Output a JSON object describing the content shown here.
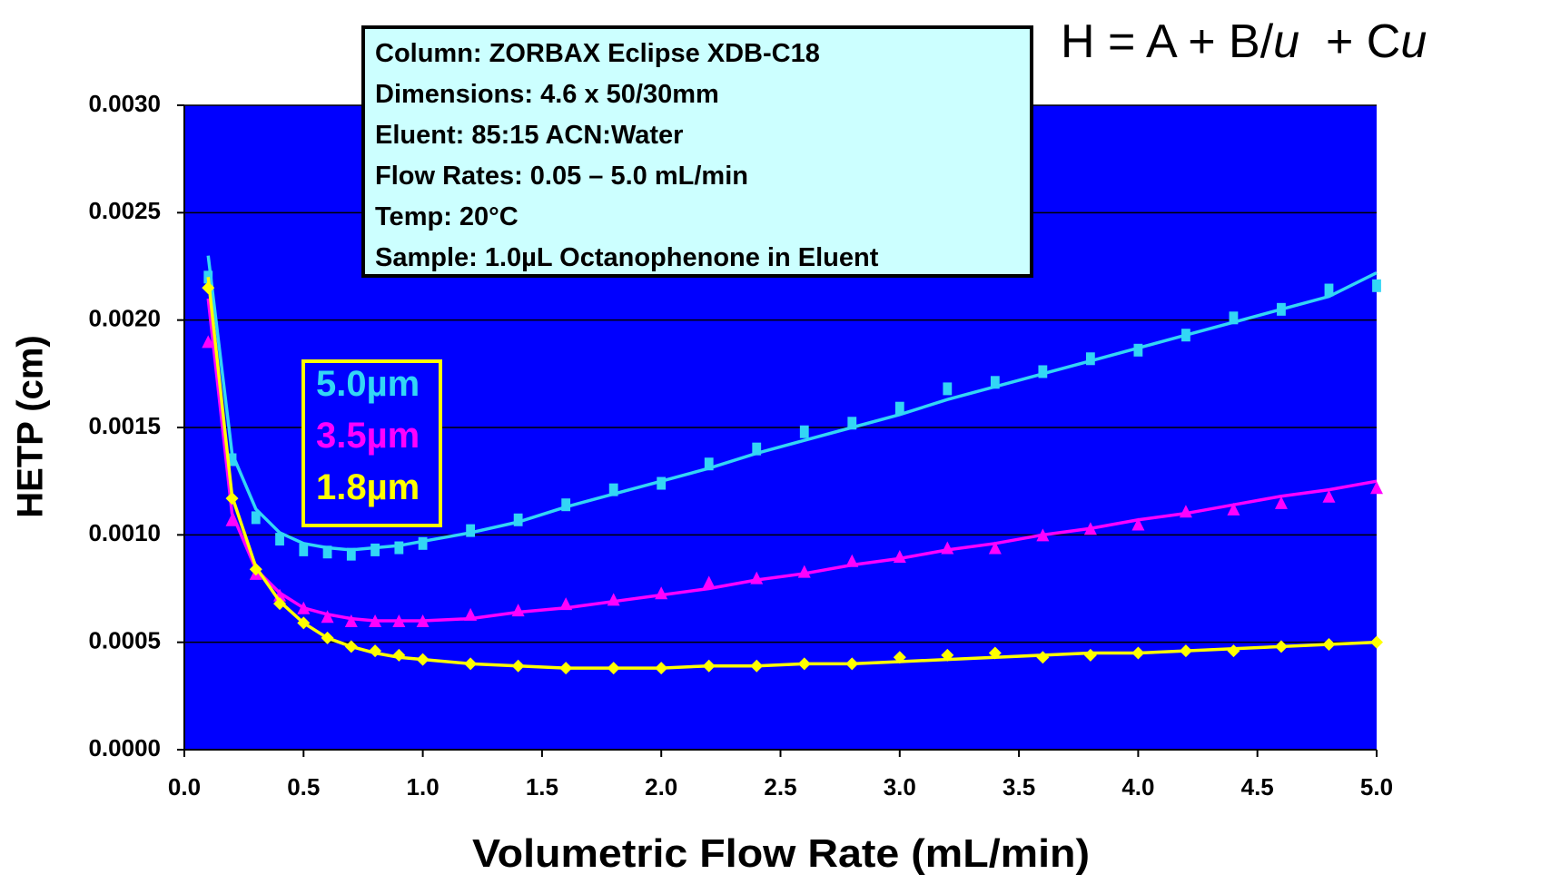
{
  "chart_data": {
    "type": "scatter",
    "equation": [
      "H = A  + B/",
      "u",
      "  + C",
      "u"
    ],
    "info": [
      "Column: ZORBAX Eclipse XDB-C18",
      "Dimensions: 4.6 x 50/30mm",
      "Eluent: 85:15 ACN:Water",
      "Flow Rates: 0.05 – 5.0 mL/min",
      "Temp: 20°C",
      "Sample: 1.0µL Octanophenone in Eluent"
    ],
    "x_label": "Volumetric Flow Rate (mL/min)",
    "y_label": "HETP (cm)",
    "xlim": [
      0,
      5
    ],
    "ylim": [
      0,
      0.003
    ],
    "xticks": [
      {
        "value": 0,
        "label": "0.0"
      },
      0.5,
      {
        "value": 1,
        "label": "1.0"
      },
      1.5,
      {
        "value": 2,
        "label": "2.0"
      },
      2.5,
      {
        "value": 3,
        "label": "3.0"
      },
      3.5,
      {
        "value": 4,
        "label": "4.0"
      },
      4.5,
      {
        "value": 5,
        "label": "5.0"
      }
    ],
    "yticks": [
      {
        "value": 0,
        "label": "0.0000"
      },
      0.0005,
      {
        "value": 0.001,
        "label": "0.0010"
      },
      0.0015,
      {
        "value": 0.002,
        "label": "0.0020"
      },
      0.0025,
      {
        "value": 0.003,
        "label": "0.0030"
      }
    ],
    "grid": true,
    "background": "#0000ff",
    "x": [
      0.1,
      0.2,
      0.3,
      0.4,
      0.5,
      0.6,
      0.7,
      0.8,
      0.9,
      1.0,
      1.2,
      1.4,
      1.6,
      1.8,
      2.0,
      2.2,
      2.4,
      2.6,
      2.8,
      3.0,
      3.2,
      3.4,
      3.6,
      3.8,
      4.0,
      4.2,
      4.4,
      4.6,
      4.8,
      5.0
    ],
    "series": [
      {
        "name": "5.0µm",
        "color": "#33d6f5",
        "marker": "square",
        "values": [
          0.0022,
          0.00135,
          0.00108,
          0.00098,
          0.00093,
          0.00092,
          0.00091,
          0.00093,
          0.00094,
          0.00096,
          0.00102,
          0.00107,
          0.00114,
          0.00121,
          0.00124,
          0.00133,
          0.0014,
          0.00148,
          0.00152,
          0.00159,
          0.00168,
          0.00171,
          0.00176,
          0.00182,
          0.00186,
          0.00193,
          0.00201,
          0.00205,
          0.00214,
          0.00216
        ],
        "fit_values": [
          0.0023,
          0.00138,
          0.00112,
          0.00101,
          0.00096,
          0.00094,
          0.00093,
          0.00094,
          0.00095,
          0.00097,
          0.00101,
          0.00106,
          0.00113,
          0.00119,
          0.00125,
          0.00131,
          0.00138,
          0.00144,
          0.0015,
          0.00156,
          0.00163,
          0.00169,
          0.00175,
          0.00181,
          0.00187,
          0.00193,
          0.00199,
          0.00205,
          0.00211,
          0.00222
        ]
      },
      {
        "name": "3.5µm",
        "color": "#ff00ff",
        "marker": "triangle",
        "values": [
          0.0019,
          0.00107,
          0.00082,
          0.00072,
          0.00066,
          0.00062,
          0.0006,
          0.0006,
          0.0006,
          0.0006,
          0.00063,
          0.00065,
          0.00068,
          0.0007,
          0.00073,
          0.00078,
          0.0008,
          0.00083,
          0.00088,
          0.0009,
          0.00094,
          0.00094,
          0.001,
          0.00103,
          0.00105,
          0.00111,
          0.00112,
          0.00115,
          0.00118,
          0.00122
        ],
        "fit_values": [
          0.0021,
          0.0011,
          0.00084,
          0.00073,
          0.00066,
          0.00063,
          0.00061,
          0.0006,
          0.0006,
          0.0006,
          0.00061,
          0.00064,
          0.00066,
          0.00069,
          0.00072,
          0.00075,
          0.00079,
          0.00082,
          0.00086,
          0.00089,
          0.00093,
          0.00096,
          0.001,
          0.00103,
          0.00107,
          0.0011,
          0.00114,
          0.00118,
          0.00121,
          0.00125
        ]
      },
      {
        "name": "1.8µm",
        "color": "#ffff00",
        "marker": "diamond",
        "values": [
          0.00215,
          0.00117,
          0.00084,
          0.00068,
          0.00059,
          0.00052,
          0.00048,
          0.00046,
          0.00044,
          0.00042,
          0.0004,
          0.00039,
          0.00038,
          0.00038,
          0.00038,
          0.00039,
          0.00039,
          0.0004,
          0.0004,
          0.00043,
          0.00044,
          0.00045,
          0.00043,
          0.00044,
          0.00045,
          0.00046,
          0.00046,
          0.00048,
          0.00049,
          0.0005
        ],
        "fit_values": [
          0.0022,
          0.00118,
          0.00085,
          0.00069,
          0.00059,
          0.00052,
          0.00048,
          0.00045,
          0.00043,
          0.00042,
          0.0004,
          0.00039,
          0.00038,
          0.00038,
          0.00038,
          0.00039,
          0.00039,
          0.0004,
          0.0004,
          0.00041,
          0.00042,
          0.00043,
          0.00044,
          0.00045,
          0.00045,
          0.00046,
          0.00047,
          0.00048,
          0.00049,
          0.0005
        ]
      }
    ]
  }
}
